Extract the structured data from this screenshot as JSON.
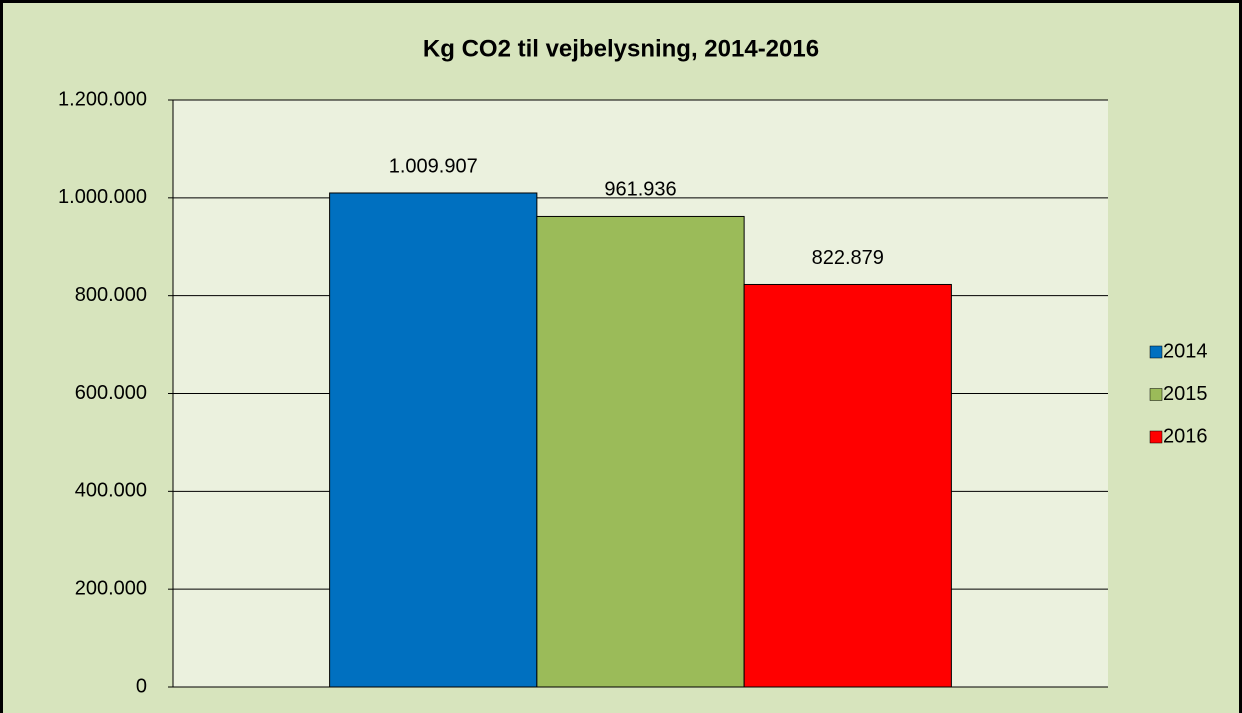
{
  "chart_data": {
    "type": "bar",
    "title": "Kg CO2 til vejbelysning, 2014-2016",
    "categories": [
      null
    ],
    "series": [
      {
        "name": "2014",
        "color": "#0070c0",
        "values": [
          1009907
        ],
        "value_labels": [
          "1.009.907"
        ]
      },
      {
        "name": "2015",
        "color": "#9bbb59",
        "values": [
          961936
        ],
        "value_labels": [
          "961.936"
        ]
      },
      {
        "name": "2016",
        "color": "#ff0000",
        "values": [
          822879
        ],
        "value_labels": [
          "822.879"
        ]
      }
    ],
    "ylim": [
      0,
      1200000
    ],
    "yticks": [
      0,
      {
        "value": 200000,
        "label": "200.000"
      },
      {
        "value": 400000,
        "label": "400.000"
      },
      {
        "value": 600000,
        "label": "600.000"
      },
      {
        "value": 800000,
        "label": "800.000"
      },
      {
        "value": 1000000,
        "label": "1.000.000"
      },
      {
        "value": 1200000,
        "label": "1.200.000"
      }
    ],
    "grid": true,
    "legend": "right"
  }
}
